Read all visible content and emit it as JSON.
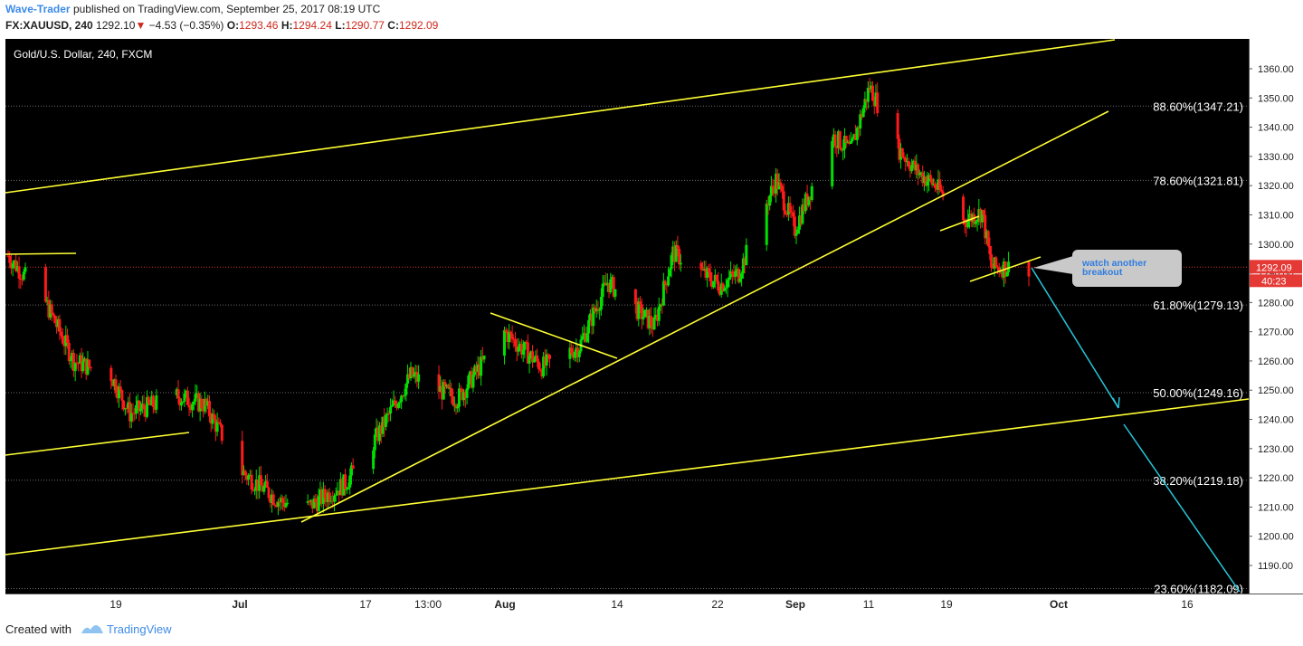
{
  "header": {
    "author": "Wave-Trader",
    "published_text": "published on TradingView.com, September 25, 2017 08:19 UTC",
    "symbol": "FX:XAUUSD, 240",
    "last": "1292.10",
    "change_arrow": "▼",
    "change": "−4.53 (−0.35%)",
    "o_label": "O:",
    "o_val": "1293.46",
    "h_label": "H:",
    "h_val": "1294.24",
    "l_label": "L:",
    "l_val": "1290.77",
    "c_label": "C:",
    "c_val": "1292.09"
  },
  "chart_title": "Gold/U.S. Dollar, 240, FXCM",
  "colors": {
    "up_candle": "#00e000",
    "down_candle": "#ff1a1a",
    "trendline": "#ffff33",
    "projection": "#26c6da",
    "price_line": "#d32f2f",
    "background": "#000000",
    "accent": "#3d8be8"
  },
  "price_axis": {
    "ticks": [
      "1360.00",
      "1350.00",
      "1340.00",
      "1330.00",
      "1320.00",
      "1310.00",
      "1300.00",
      "1290.00",
      "1280.00",
      "1270.00",
      "1260.00",
      "1250.00",
      "1240.00",
      "1230.00",
      "1220.00",
      "1210.00",
      "1200.00",
      "1190.00"
    ],
    "current_price": "1292.09",
    "countdown": "40:23"
  },
  "time_axis": [
    "19",
    "Jul",
    "17",
    "13:00",
    "Aug",
    "14",
    "22",
    "Sep",
    "11",
    "19",
    "Oct",
    "16"
  ],
  "fib_levels": [
    {
      "label": "88.60%(1347.21)",
      "price": 1347.21
    },
    {
      "label": "78.60%(1321.81)",
      "price": 1321.81
    },
    {
      "label": "61.80%(1279.13)",
      "price": 1279.13
    },
    {
      "label": "50.00%(1249.16)",
      "price": 1249.16
    },
    {
      "label": "38.20%(1219.18)",
      "price": 1219.18
    },
    {
      "label": "23.60%(1182.09)",
      "price": 1182.09
    }
  ],
  "annotation": "watch another breakout",
  "footer": {
    "created_with": "Created with",
    "brand": "TradingView"
  },
  "chart_data": {
    "type": "candlestick",
    "title": "Gold/U.S. Dollar, 240, FXCM",
    "ylim": [
      1180,
      1365
    ],
    "approx_close_path": [
      {
        "x": "Jun 8",
        "y": 1296
      },
      {
        "x": "Jun 12",
        "y": 1280
      },
      {
        "x": "Jun 15",
        "y": 1260
      },
      {
        "x": "Jun 19",
        "y": 1255
      },
      {
        "x": "Jun 21",
        "y": 1242
      },
      {
        "x": "Jun 26",
        "y": 1248
      },
      {
        "x": "Jun 29",
        "y": 1245
      },
      {
        "x": "Jul 3",
        "y": 1222
      },
      {
        "x": "Jul 7",
        "y": 1212
      },
      {
        "x": "Jul 10",
        "y": 1210
      },
      {
        "x": "Jul 14",
        "y": 1218
      },
      {
        "x": "Jul 17",
        "y": 1232
      },
      {
        "x": "Jul 21",
        "y": 1255
      },
      {
        "x": "Jul 26",
        "y": 1247
      },
      {
        "x": "Jul 31",
        "y": 1270
      },
      {
        "x": "Aug 4",
        "y": 1258
      },
      {
        "x": "Aug 8",
        "y": 1265
      },
      {
        "x": "Aug 11",
        "y": 1287
      },
      {
        "x": "Aug 16",
        "y": 1272
      },
      {
        "x": "Aug 18",
        "y": 1297
      },
      {
        "x": "Aug 23",
        "y": 1286
      },
      {
        "x": "Aug 25",
        "y": 1290
      },
      {
        "x": "Aug 29",
        "y": 1322
      },
      {
        "x": "Aug 31",
        "y": 1305
      },
      {
        "x": "Sep 4",
        "y": 1337
      },
      {
        "x": "Sep 6",
        "y": 1332
      },
      {
        "x": "Sep 8",
        "y": 1354
      },
      {
        "x": "Sep 11",
        "y": 1333
      },
      {
        "x": "Sep 13",
        "y": 1325
      },
      {
        "x": "Sep 15",
        "y": 1320
      },
      {
        "x": "Sep 18",
        "y": 1308
      },
      {
        "x": "Sep 20",
        "y": 1311
      },
      {
        "x": "Sep 21",
        "y": 1292
      },
      {
        "x": "Sep 25",
        "y": 1292.09
      }
    ]
  }
}
